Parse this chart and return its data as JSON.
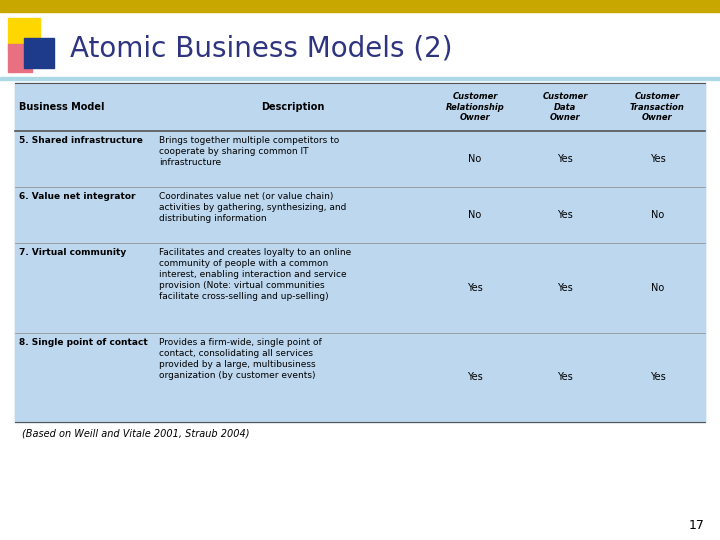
{
  "title": "Atomic Business Models (2)",
  "title_color": "#2E3480",
  "bg_color": "#FFFFFF",
  "table_bg": "#BDD7EE",
  "slide_number": "17",
  "citation": "(Based on Weill and Vitale 2001, Straub 2004)",
  "rows": [
    {
      "model": "5. Shared infrastructure",
      "description": "Brings together multiple competitors to\ncooperate by sharing common IT\ninfrastructure",
      "cro": "No",
      "cdo": "Yes",
      "cto": "Yes"
    },
    {
      "model": "6. Value net integrator",
      "description": "Coordinates value net (or value chain)\nactivities by gathering, synthesizing, and\ndistributing information",
      "cro": "No",
      "cdo": "Yes",
      "cto": "No"
    },
    {
      "model": "7. Virtual community",
      "description": "Facilitates and creates loyalty to an online\ncommunity of people with a common\ninterest, enabling interaction and service\nprovision (Note: virtual communities\nfacilitate cross-selling and up-selling)",
      "cro": "Yes",
      "cdo": "Yes",
      "cto": "No"
    },
    {
      "model": "8. Single point of contact",
      "description": "Provides a firm-wide, single point of\ncontact, consolidating all services\nprovided by a large, multibusiness\norganization (by customer events)",
      "cro": "Yes",
      "cdo": "Yes",
      "cto": "Yes"
    }
  ],
  "accent_bar_color": "#C8A800",
  "accent_square_yellow": "#FFD700",
  "accent_square_red": "#C8002A",
  "accent_square_blue": "#1E3A8A",
  "accent_square_pink": "#E87080"
}
